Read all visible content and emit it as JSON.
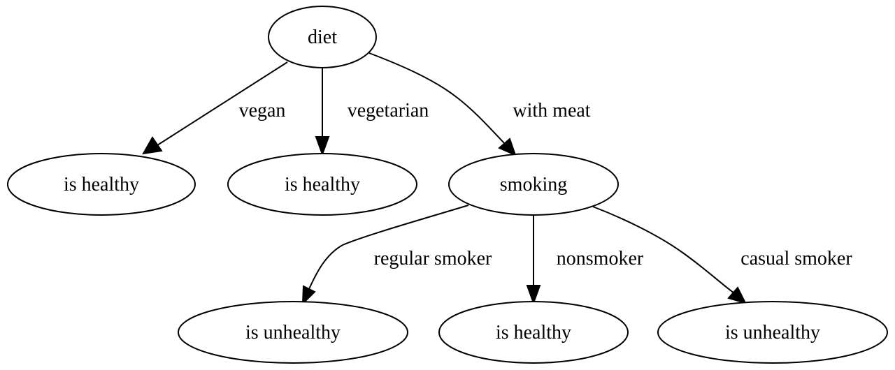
{
  "nodes": {
    "diet": "diet",
    "vegan_outcome": "is healthy",
    "vegetarian_outcome": "is healthy",
    "smoking": "smoking",
    "regular_smoker_outcome": "is unhealthy",
    "nonsmoker_outcome": "is healthy",
    "casual_smoker_outcome": "is unhealthy"
  },
  "edges": {
    "vegan": "vegan",
    "vegetarian": "vegetarian",
    "with_meat": "with meat",
    "regular_smoker": "regular smoker",
    "nonsmoker": "nonsmoker",
    "casual_smoker": "casual smoker"
  }
}
